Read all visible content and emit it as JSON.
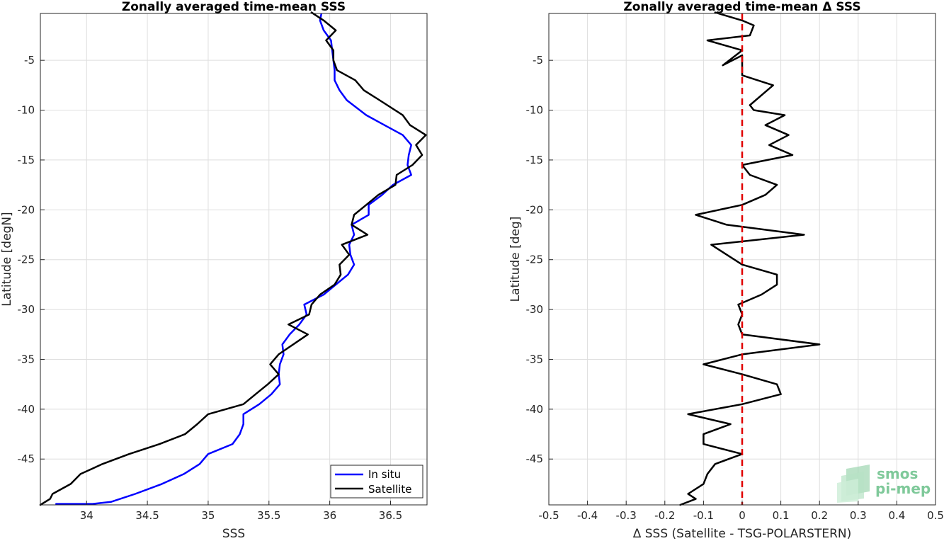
{
  "chart_data": [
    {
      "type": "line",
      "title": "Zonally averaged time-mean SSS",
      "xlabel": "SSS",
      "ylabel": "Latitude [degN]",
      "xlim": [
        33.62,
        36.8
      ],
      "ylim": [
        -49.6,
        -0.3
      ],
      "xticks": [
        34,
        34.5,
        35,
        35.5,
        36,
        36.5
      ],
      "xtick_labels": [
        "34",
        "34.5",
        "35",
        "35.5",
        "36",
        "36.5"
      ],
      "yticks": [
        -5,
        -10,
        -15,
        -20,
        -25,
        -30,
        -35,
        -40,
        -45
      ],
      "ytick_labels": [
        "-5",
        "-10",
        "-15",
        "-20",
        "-25",
        "-30",
        "-35",
        "-40",
        "-45"
      ],
      "grid": true,
      "legend_position": "bottom-right",
      "series": [
        {
          "name": "In situ",
          "color": "#0000ff",
          "x": [
            35.93,
            35.92,
            35.95,
            36.01,
            36.02,
            36.03,
            36.04,
            36.04,
            36.08,
            36.14,
            36.3,
            36.45,
            36.6,
            36.67,
            36.65,
            36.64,
            36.67,
            36.52,
            36.43,
            36.32,
            36.32,
            36.18,
            36.2,
            36.16,
            36.17,
            36.2,
            36.15,
            36.05,
            35.95,
            35.79,
            35.81,
            35.75,
            35.67,
            35.61,
            35.62,
            35.59,
            35.58,
            35.59,
            35.52,
            35.42,
            35.29,
            35.29,
            35.26,
            35.2,
            35.0,
            34.93,
            34.8,
            34.62,
            34.4,
            34.2,
            34.05,
            33.92,
            33.85,
            33.75
          ],
          "y": [
            -0.4,
            -1.0,
            -2.0,
            -3.0,
            -4.0,
            -5.0,
            -6.0,
            -7.0,
            -8.0,
            -9.0,
            -10.5,
            -11.5,
            -12.5,
            -13.5,
            -14.5,
            -15.5,
            -16.5,
            -17.5,
            -18.5,
            -19.5,
            -20.5,
            -21.5,
            -22.5,
            -23.5,
            -24.5,
            -25.5,
            -26.5,
            -27.5,
            -28.5,
            -29.5,
            -30.5,
            -31.5,
            -32.5,
            -33.5,
            -34.5,
            -35.5,
            -36.5,
            -37.5,
            -38.5,
            -39.5,
            -40.5,
            -41.5,
            -42.5,
            -43.5,
            -44.5,
            -45.5,
            -46.5,
            -47.5,
            -48.5,
            -49.3,
            -49.5,
            -49.5,
            -49.5,
            -49.5
          ]
        },
        {
          "name": "Satellite",
          "color": "#000000",
          "x": [
            35.85,
            35.95,
            36.05,
            35.97,
            36.03,
            36.03,
            36.06,
            36.21,
            36.28,
            36.41,
            36.6,
            36.66,
            36.79,
            36.71,
            36.76,
            36.68,
            36.55,
            36.54,
            36.4,
            36.3,
            36.2,
            36.18,
            36.31,
            36.1,
            36.16,
            36.08,
            36.09,
            36.04,
            35.92,
            35.85,
            35.83,
            35.66,
            35.82,
            35.58,
            35.51,
            35.58,
            35.49,
            35.39,
            35.29,
            35.0,
            34.91,
            34.81,
            34.6,
            34.35,
            34.13,
            33.95,
            33.87,
            33.72,
            33.7,
            33.62
          ],
          "y": [
            -0.2,
            -1.0,
            -2.0,
            -3.0,
            -4.0,
            -5.0,
            -6.0,
            -7.0,
            -8.0,
            -9.0,
            -10.5,
            -11.5,
            -12.5,
            -13.5,
            -14.5,
            -15.5,
            -16.5,
            -17.5,
            -18.5,
            -19.5,
            -20.5,
            -21.5,
            -22.5,
            -23.5,
            -24.5,
            -25.5,
            -26.5,
            -27.5,
            -28.5,
            -29.5,
            -30.5,
            -31.5,
            -32.5,
            -34.5,
            -35.5,
            -36.5,
            -37.5,
            -38.5,
            -39.5,
            -40.5,
            -41.5,
            -42.5,
            -43.5,
            -44.5,
            -45.5,
            -46.5,
            -47.5,
            -48.5,
            -49.0,
            -49.6
          ]
        }
      ]
    },
    {
      "type": "line",
      "title": "Zonally averaged time-mean Δ SSS",
      "xlabel": "Δ SSS (Satellite - TSG-POLARSTERN)",
      "ylabel": "Latitude [deg]",
      "xlim": [
        -0.5,
        0.5
      ],
      "ylim": [
        -49.6,
        -0.3
      ],
      "xticks": [
        -0.5,
        -0.4,
        -0.3,
        -0.2,
        -0.1,
        0,
        0.1,
        0.2,
        0.3,
        0.4,
        0.5
      ],
      "xtick_labels": [
        "-0.5",
        "-0.4",
        "-0.3",
        "-0.2",
        "-0.1",
        "0",
        "0.1",
        "0.2",
        "0.3",
        "0.4",
        "0.5"
      ],
      "yticks": [
        -5,
        -10,
        -15,
        -20,
        -25,
        -30,
        -35,
        -40,
        -45
      ],
      "ytick_labels": [
        "-5",
        "-10",
        "-15",
        "-20",
        "-25",
        "-30",
        "-35",
        "-40",
        "-45"
      ],
      "grid": true,
      "zero_line_color": "#e00000",
      "series": [
        {
          "color": "#000000",
          "x": [
            -0.07,
            0.0,
            0.03,
            0.02,
            -0.09,
            0.0,
            -0.05,
            0.0,
            0.0,
            0.08,
            0.02,
            0.03,
            0.11,
            0.06,
            0.12,
            0.07,
            0.13,
            0.0,
            0.02,
            0.09,
            0.06,
            0.0,
            -0.12,
            -0.04,
            0.16,
            -0.08,
            -0.04,
            0.0,
            0.09,
            0.09,
            0.05,
            -0.01,
            0.0,
            -0.01,
            0.0,
            0.2,
            0.0,
            -0.1,
            0.0,
            0.09,
            0.1,
            0.0,
            -0.14,
            -0.03,
            -0.1,
            -0.1,
            0.0,
            -0.07,
            -0.09,
            -0.1,
            -0.14,
            -0.12,
            -0.16
          ],
          "y": [
            -0.2,
            -1.0,
            -1.5,
            -2.5,
            -3.0,
            -4.0,
            -5.5,
            -4.5,
            -6.5,
            -7.5,
            -9.5,
            -10.0,
            -10.5,
            -11.5,
            -12.5,
            -13.5,
            -14.5,
            -15.5,
            -16.5,
            -17.5,
            -18.5,
            -19.5,
            -20.5,
            -21.5,
            -22.5,
            -23.5,
            -24.5,
            -25.5,
            -26.5,
            -27.5,
            -28.5,
            -29.5,
            -30.5,
            -31.5,
            -32.5,
            -33.5,
            -34.5,
            -35.5,
            -36.5,
            -37.5,
            -38.5,
            -39.5,
            -40.5,
            -41.5,
            -42.5,
            -43.5,
            -44.5,
            -45.5,
            -46.5,
            -47.5,
            -48.5,
            -49.0,
            -49.6
          ]
        }
      ]
    }
  ],
  "logo": {
    "line1": "smos",
    "line2": "pi-mep"
  }
}
